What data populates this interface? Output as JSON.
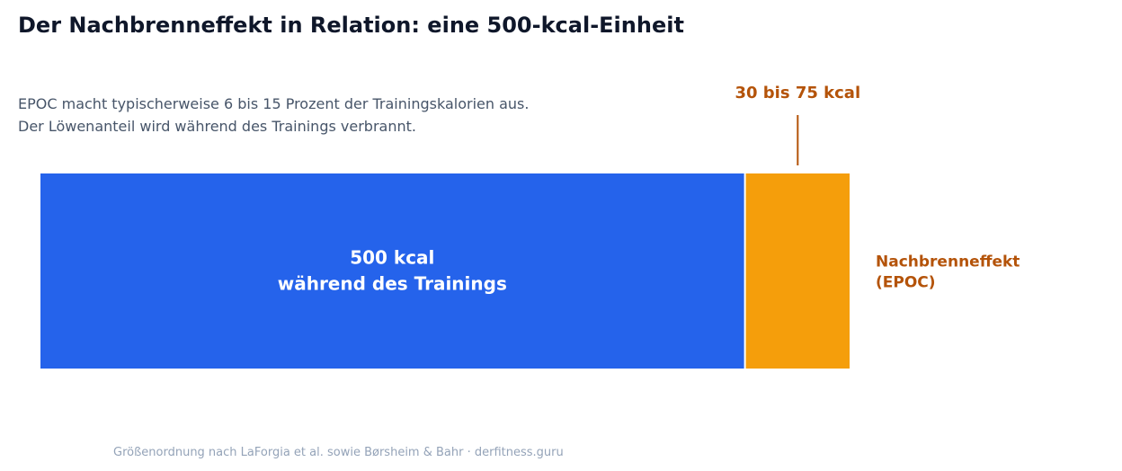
{
  "header": {
    "title": "Der Nachbrenneffekt in Relation: eine 500-kcal-Einheit",
    "subtitle_lines": [
      "EPOC macht typischerweise 6 bis 15 Prozent der Trainingskalorien aus.",
      "Der Löwenanteil wird während des Trainings verbrannt."
    ]
  },
  "footer": {
    "source": "Größenordnung nach LaForgia et al. sowie Børsheim & Bahr · derfitness.guru"
  },
  "chart_data": {
    "type": "bar",
    "orientation": "horizontal-stacked",
    "title": "Der Nachbrenneffekt in Relation: eine 500-kcal-Einheit",
    "unit": "kcal",
    "segments": [
      {
        "value": 500,
        "label_lines": [
          "500 kcal",
          "während des Trainings"
        ],
        "color": "#2563eb",
        "label_color": "#ffffff"
      },
      {
        "value": 75,
        "range": [
          30,
          75
        ],
        "label_lines": [
          "Nachbrenneffekt",
          "(EPOC)"
        ],
        "callout": "30 bis 75 kcal",
        "color": "#f59e0b",
        "label_color": "#b45309"
      }
    ],
    "xlim": [
      0,
      575
    ],
    "grid": false,
    "axes": false
  }
}
